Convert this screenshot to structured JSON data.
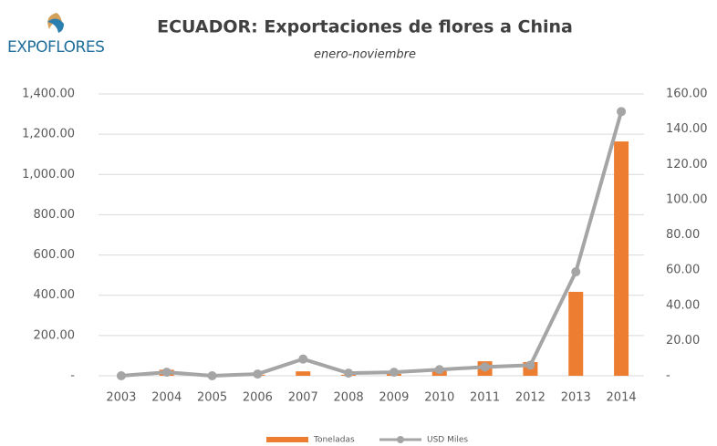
{
  "logo": "EXPOFLORES",
  "chart_data": {
    "type": "bar_line",
    "title": "ECUADOR: Exportaciones de flores a China",
    "subtitle": "enero-noviembre",
    "categories": [
      "2003",
      "2004",
      "2005",
      "2006",
      "2007",
      "2008",
      "2009",
      "2010",
      "2011",
      "2012",
      "2013",
      "2014"
    ],
    "series": [
      {
        "name": "Toneladas",
        "color": "#ed7d31",
        "type": "bar",
        "values": [
          0,
          30,
          0,
          5,
          22,
          5,
          10,
          30,
          72,
          68,
          417,
          1164
        ]
      },
      {
        "name": "USD Miles",
        "color": "#a5a5a5",
        "type": "line",
        "axis": "y2",
        "values": [
          0,
          2,
          0,
          1,
          9.5,
          1.5,
          2,
          3.5,
          5,
          6,
          59,
          150
        ]
      }
    ],
    "ylim": [
      0,
      1400
    ],
    "yticks": [
      {
        "value": 0,
        "label": "-"
      },
      {
        "value": 200,
        "label": "200.00"
      },
      {
        "value": 400,
        "label": "400.00"
      },
      {
        "value": 600,
        "label": "600.00"
      },
      {
        "value": 800,
        "label": "800.00"
      },
      {
        "value": 1000,
        "label": "1,000.00"
      },
      {
        "value": 1200,
        "label": "1,200.00"
      },
      {
        "value": 1400,
        "label": "1,400.00"
      }
    ],
    "y2lim": [
      0,
      160
    ],
    "y2ticks": [
      {
        "value": 0,
        "label": "-"
      },
      {
        "value": 20,
        "label": "20.00"
      },
      {
        "value": 40,
        "label": "40.00"
      },
      {
        "value": 60,
        "label": "60.00"
      },
      {
        "value": 80,
        "label": "80.00"
      },
      {
        "value": 100,
        "label": "100.00"
      },
      {
        "value": 120,
        "label": "120.00"
      },
      {
        "value": 140,
        "label": "140.00"
      },
      {
        "value": 160,
        "label": "160.00"
      }
    ],
    "grid": true,
    "legend": "bottom"
  }
}
